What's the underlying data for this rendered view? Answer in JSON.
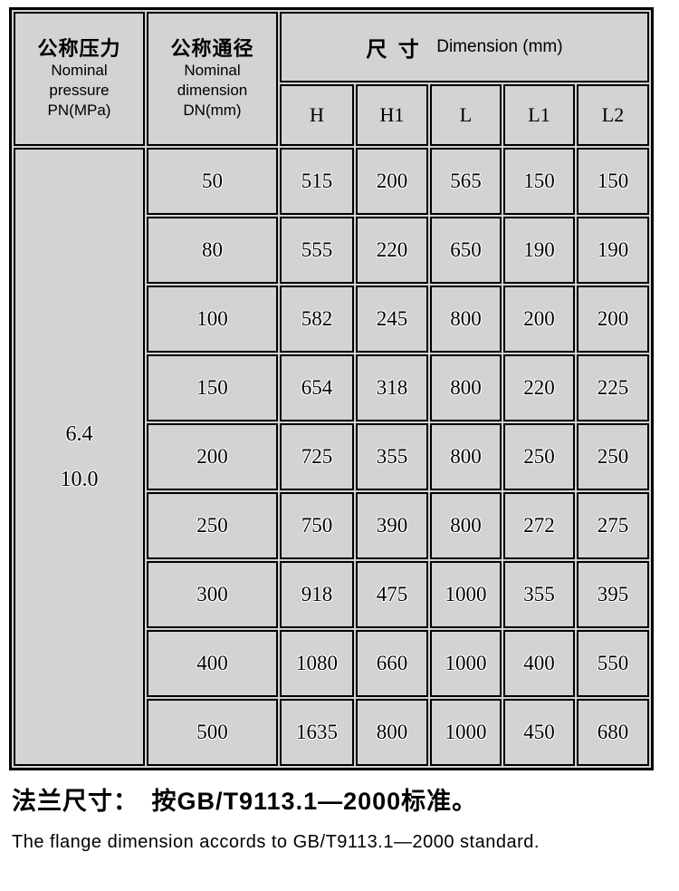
{
  "colors": {
    "page_bg": "#ffffff",
    "cell_bg": "#d4d2d4",
    "border": "#000000",
    "text": "#000000"
  },
  "table": {
    "header": {
      "col1_zh": "公称压力",
      "col1_en": "Nominal\npressure\nPN(MPa)",
      "col2_zh": "公称通径",
      "col2_en": "Nominal\ndimension\nDN(mm)",
      "dim_zh": "尺 寸",
      "dim_en": "Dimension (mm)",
      "sub_columns": [
        "H",
        "H1",
        "L",
        "L1",
        "L2"
      ]
    },
    "pn_values": [
      "6.4",
      "10.0"
    ],
    "rows": [
      {
        "dn": "50",
        "h": "515",
        "h1": "200",
        "l": "565",
        "l1": "150",
        "l2": "150"
      },
      {
        "dn": "80",
        "h": "555",
        "h1": "220",
        "l": "650",
        "l1": "190",
        "l2": "190"
      },
      {
        "dn": "100",
        "h": "582",
        "h1": "245",
        "l": "800",
        "l1": "200",
        "l2": "200"
      },
      {
        "dn": "150",
        "h": "654",
        "h1": "318",
        "l": "800",
        "l1": "220",
        "l2": "225"
      },
      {
        "dn": "200",
        "h": "725",
        "h1": "355",
        "l": "800",
        "l1": "250",
        "l2": "250"
      },
      {
        "dn": "250",
        "h": "750",
        "h1": "390",
        "l": "800",
        "l1": "272",
        "l2": "275"
      },
      {
        "dn": "300",
        "h": "918",
        "h1": "475",
        "l": "1000",
        "l1": "355",
        "l2": "395"
      },
      {
        "dn": "400",
        "h": "1080",
        "h1": "660",
        "l": "1000",
        "l1": "400",
        "l2": "550"
      },
      {
        "dn": "500",
        "h": "1635",
        "h1": "800",
        "l": "1000",
        "l1": "450",
        "l2": "680"
      }
    ]
  },
  "footer": {
    "line_zh": "法兰尺寸：　按GB/T9113.1—2000标准。",
    "line_en": "The flange dimension accords to GB/T9113.1—2000 standard."
  }
}
